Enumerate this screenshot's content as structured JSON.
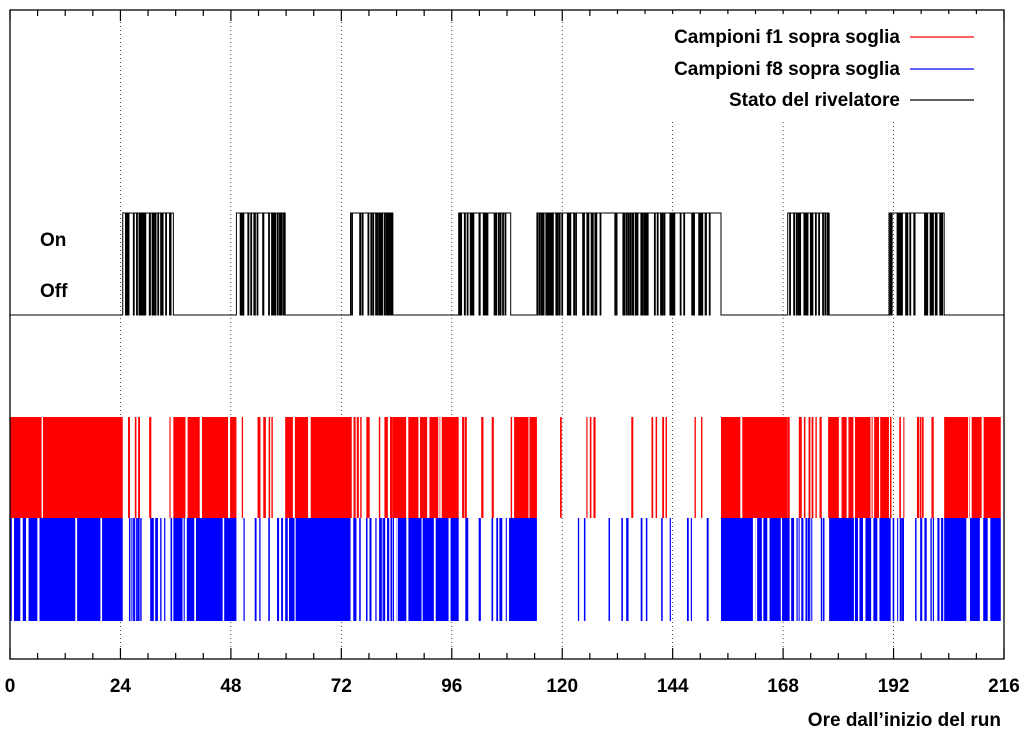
{
  "chart_data": {
    "type": "line",
    "xlabel": "Ore dall’inizio del run",
    "ylabel": "",
    "xlim": [
      0,
      216
    ],
    "x_ticks": [
      0,
      24,
      48,
      72,
      96,
      120,
      144,
      168,
      192,
      216
    ],
    "x_tick_labels": [
      "0",
      "24",
      "48",
      "72",
      "96",
      "120",
      "144",
      "168",
      "192",
      "216"
    ],
    "x_minor_step": 6,
    "vertical_grid": true,
    "y_state_labels": [
      "On",
      "Off"
    ],
    "legend": {
      "placement": "top-right",
      "entries": [
        {
          "label": "Campioni f1 sopra soglia",
          "color": "#ff0000"
        },
        {
          "label": "Campioni f8 sopra soglia",
          "color": "#0000ff"
        },
        {
          "label": "Stato del rivelatore",
          "color": "#000000"
        }
      ]
    },
    "series": [
      {
        "name": "Stato del rivelatore",
        "color": "#000000",
        "on_intervals": [
          [
            24.5,
            35.5
          ],
          [
            49.2,
            59.8
          ],
          [
            74.0,
            83.2
          ],
          [
            97.5,
            108.8
          ],
          [
            114.5,
            154.5
          ],
          [
            169.0,
            178.0
          ],
          [
            191.0,
            203.0
          ]
        ]
      },
      {
        "name": "Campioni f1 sopra soglia",
        "color": "#ff0000",
        "dense_intervals": [
          [
            0,
            24.5
          ],
          [
            35.5,
            49.2
          ],
          [
            59.8,
            74.0
          ],
          [
            83.2,
            97.5
          ],
          [
            108.8,
            114.5
          ],
          [
            154.5,
            169.0
          ],
          [
            178.0,
            191.0
          ],
          [
            203.0,
            215.3
          ]
        ]
      },
      {
        "name": "Campioni f8 sopra soglia",
        "color": "#0000ff",
        "dense_intervals": [
          [
            0,
            24.5
          ],
          [
            35.5,
            49.2
          ],
          [
            59.8,
            74.0
          ],
          [
            83.2,
            97.5
          ],
          [
            108.8,
            114.5
          ],
          [
            154.5,
            169.0
          ],
          [
            178.0,
            191.0
          ],
          [
            203.0,
            215.3
          ]
        ]
      }
    ]
  }
}
